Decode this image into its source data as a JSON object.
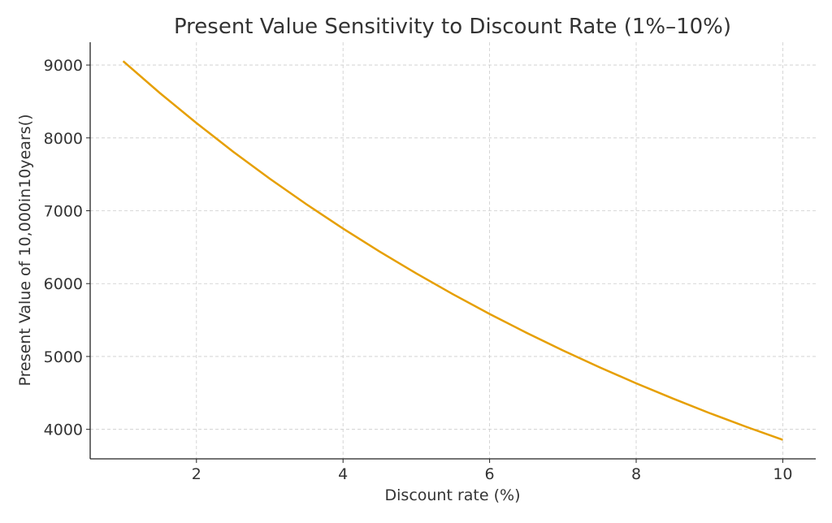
{
  "chart_data": {
    "type": "line",
    "title": "Present Value Sensitivity to Discount Rate (1%–10%)",
    "xlabel": "Discount rate (%)",
    "ylabel": "Present Value of 10,000in10years()",
    "xlim": [
      0.55,
      10.45
    ],
    "ylim": [
      3595,
      9313
    ],
    "xticks": [
      2,
      4,
      6,
      8,
      10
    ],
    "yticks": [
      4000,
      5000,
      6000,
      7000,
      8000,
      9000
    ],
    "grid": true,
    "series": [
      {
        "name": "Present Value",
        "color": "#E69F00",
        "x": [
          1,
          1.5,
          2,
          2.5,
          3,
          3.5,
          4,
          4.5,
          5,
          5.5,
          6,
          6.5,
          7,
          7.5,
          8,
          8.5,
          9,
          9.5,
          10
        ],
        "y": [
          9052.87,
          8616.67,
          8203.48,
          7811.98,
          7440.94,
          7089.19,
          6755.64,
          6439.28,
          6139.13,
          5854.31,
          5583.95,
          5327.26,
          5083.49,
          4851.94,
          4631.93,
          4422.86,
          4224.11,
          4035.14,
          3855.43
        ]
      }
    ]
  }
}
